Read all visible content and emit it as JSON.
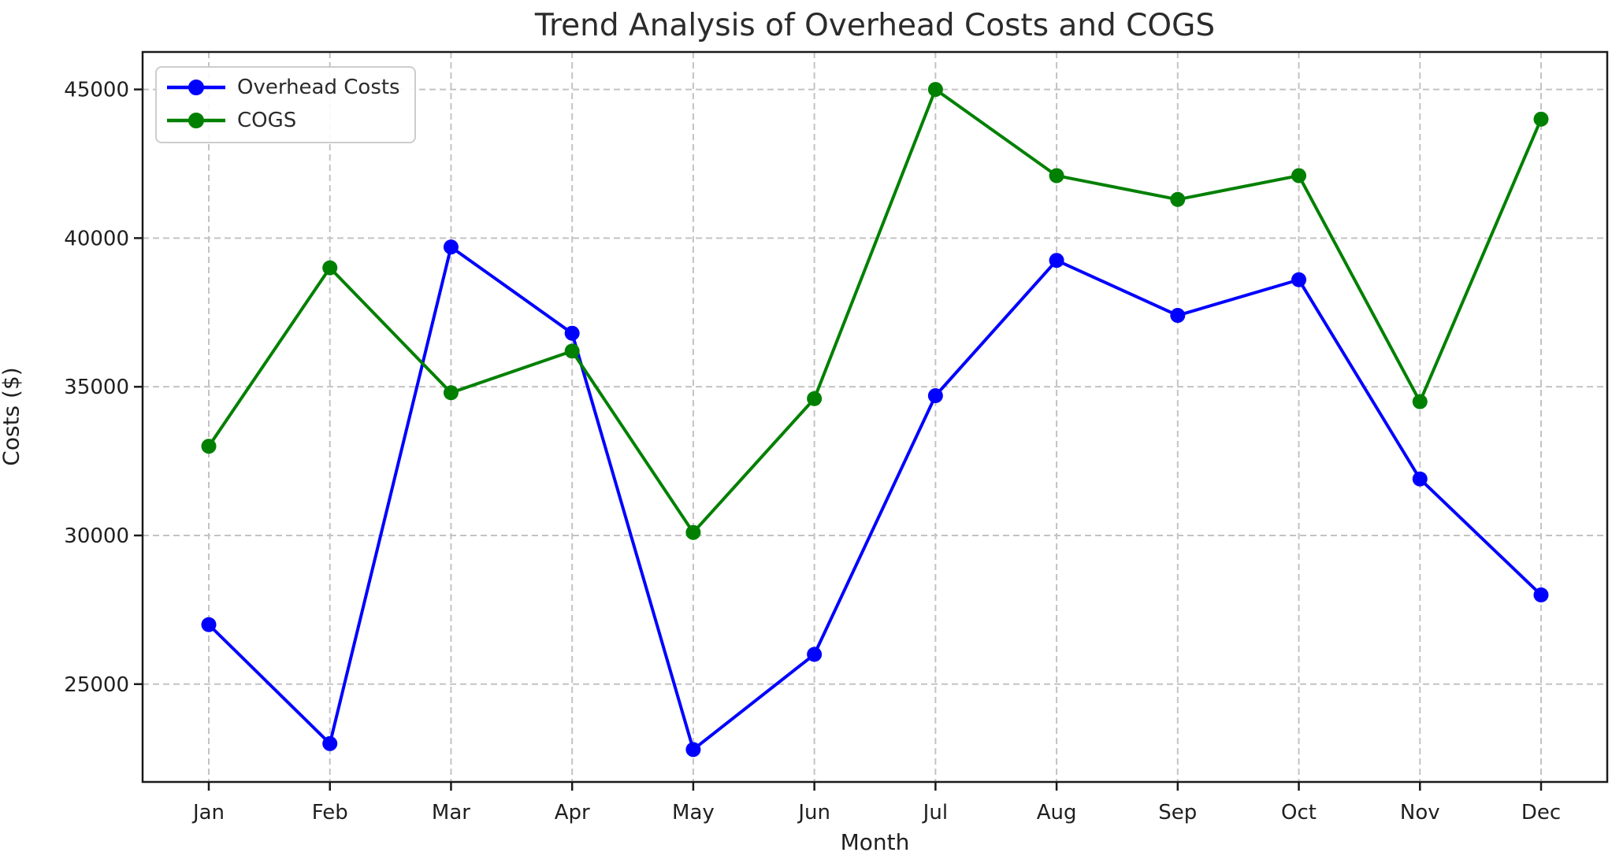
{
  "chart_data": {
    "type": "line",
    "title": "Trend Analysis of Overhead Costs and COGS",
    "xlabel": "Month",
    "ylabel": "Costs ($)",
    "categories": [
      "Jan",
      "Feb",
      "Mar",
      "Apr",
      "May",
      "Jun",
      "Jul",
      "Aug",
      "Sep",
      "Oct",
      "Nov",
      "Dec"
    ],
    "series": [
      {
        "name": "Overhead Costs",
        "color": "#0000ff",
        "values": [
          27000,
          23000,
          39700,
          36800,
          22800,
          26000,
          34700,
          39250,
          37400,
          38600,
          31900,
          28000
        ]
      },
      {
        "name": "COGS",
        "color": "#008000",
        "values": [
          33000,
          39000,
          34800,
          36200,
          30100,
          34600,
          45000,
          42100,
          41300,
          42100,
          34500,
          44000
        ]
      }
    ],
    "yticks": [
      25000,
      30000,
      35000,
      40000,
      45000
    ],
    "ylim": [
      21710,
      46260
    ],
    "grid": "dashed",
    "grid_on": true,
    "legend_position": "upper-left",
    "marker": "circle",
    "colors": {
      "text": "#1f1f1f",
      "grid": "#c3c3c3",
      "spine": "#1a1a1a",
      "background": "#ffffff"
    }
  }
}
